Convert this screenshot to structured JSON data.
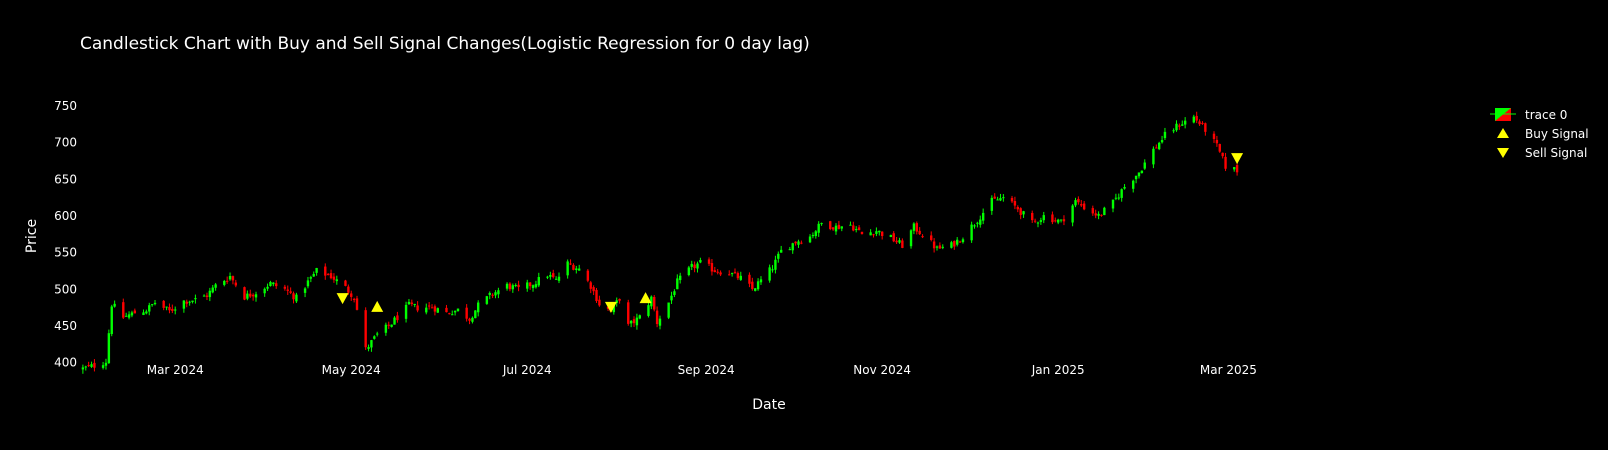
{
  "chart_data": {
    "type": "candlestick",
    "title": "Candlestick Chart with Buy and Sell Signal Changes(Logistic Regression for 0 day lag)",
    "xlabel": "Date",
    "ylabel": "Price",
    "ylim": [
      390,
      765
    ],
    "xlim": [
      "2024-01-28",
      "2025-03-31"
    ],
    "yticks": [
      400,
      450,
      500,
      550,
      600,
      650,
      700,
      750
    ],
    "xticks": [
      {
        "date": "2024-03-01",
        "label": "Mar 2024"
      },
      {
        "date": "2024-05-01",
        "label": "May 2024"
      },
      {
        "date": "2024-07-01",
        "label": "Jul 2024"
      },
      {
        "date": "2024-09-01",
        "label": "Sep 2024"
      },
      {
        "date": "2024-11-01",
        "label": "Nov 2024"
      },
      {
        "date": "2025-01-01",
        "label": "Jan 2025"
      },
      {
        "date": "2025-03-01",
        "label": "Mar 2025"
      }
    ],
    "increasing_color": "#00ff00",
    "decreasing_color": "#ff0000",
    "signal_color": "#ffff00",
    "legend_position": "top-right",
    "legend": [
      {
        "name": "trace 0",
        "symbol": "candle"
      },
      {
        "name": "Buy Signal",
        "symbol": "triangle-up"
      },
      {
        "name": "Sell Signal",
        "symbol": "triangle-down"
      }
    ],
    "close_path": [
      [
        "2024-01-29",
        392
      ],
      [
        "2024-02-02",
        396
      ],
      [
        "2024-02-06",
        402
      ],
      [
        "2024-02-08",
        480
      ],
      [
        "2024-02-12",
        462
      ],
      [
        "2024-02-16",
        468
      ],
      [
        "2024-02-20",
        472
      ],
      [
        "2024-02-23",
        482
      ],
      [
        "2024-02-28",
        470
      ],
      [
        "2024-03-04",
        484
      ],
      [
        "2024-03-08",
        486
      ],
      [
        "2024-03-12",
        492
      ],
      [
        "2024-03-15",
        505
      ],
      [
        "2024-03-20",
        518
      ],
      [
        "2024-03-25",
        490
      ],
      [
        "2024-03-29",
        496
      ],
      [
        "2024-04-03",
        508
      ],
      [
        "2024-04-08",
        500
      ],
      [
        "2024-04-12",
        488
      ],
      [
        "2024-04-16",
        510
      ],
      [
        "2024-04-19",
        525
      ],
      [
        "2024-04-24",
        518
      ],
      [
        "2024-04-29",
        502
      ],
      [
        "2024-05-02",
        490
      ],
      [
        "2024-05-06",
        418
      ],
      [
        "2024-05-10",
        438
      ],
      [
        "2024-05-14",
        450
      ],
      [
        "2024-05-17",
        462
      ],
      [
        "2024-05-21",
        478
      ],
      [
        "2024-05-24",
        475
      ],
      [
        "2024-05-29",
        476
      ],
      [
        "2024-06-03",
        468
      ],
      [
        "2024-06-07",
        472
      ],
      [
        "2024-06-11",
        460
      ],
      [
        "2024-06-14",
        478
      ],
      [
        "2024-06-19",
        494
      ],
      [
        "2024-06-24",
        505
      ],
      [
        "2024-06-28",
        500
      ],
      [
        "2024-07-03",
        508
      ],
      [
        "2024-07-08",
        520
      ],
      [
        "2024-07-11",
        512
      ],
      [
        "2024-07-15",
        535
      ],
      [
        "2024-07-19",
        528
      ],
      [
        "2024-07-23",
        505
      ],
      [
        "2024-07-26",
        480
      ],
      [
        "2024-07-30",
        470
      ],
      [
        "2024-08-02",
        488
      ],
      [
        "2024-08-05",
        450
      ],
      [
        "2024-08-09",
        462
      ],
      [
        "2024-08-13",
        488
      ],
      [
        "2024-08-15",
        455
      ],
      [
        "2024-08-19",
        482
      ],
      [
        "2024-08-22",
        510
      ],
      [
        "2024-08-27",
        530
      ],
      [
        "2024-08-30",
        536
      ],
      [
        "2024-09-04",
        526
      ],
      [
        "2024-09-09",
        522
      ],
      [
        "2024-09-13",
        515
      ],
      [
        "2024-09-17",
        500
      ],
      [
        "2024-09-20",
        512
      ],
      [
        "2024-09-24",
        530
      ],
      [
        "2024-09-27",
        552
      ],
      [
        "2024-10-02",
        565
      ],
      [
        "2024-10-07",
        572
      ],
      [
        "2024-10-11",
        590
      ],
      [
        "2024-10-16",
        585
      ],
      [
        "2024-10-21",
        588
      ],
      [
        "2024-10-25",
        575
      ],
      [
        "2024-10-30",
        580
      ],
      [
        "2024-11-04",
        570
      ],
      [
        "2024-11-08",
        560
      ],
      [
        "2024-11-12",
        585
      ],
      [
        "2024-11-15",
        575
      ],
      [
        "2024-11-20",
        555
      ],
      [
        "2024-11-25",
        560
      ],
      [
        "2024-11-29",
        572
      ],
      [
        "2024-12-04",
        595
      ],
      [
        "2024-12-09",
        620
      ],
      [
        "2024-12-13",
        625
      ],
      [
        "2024-12-18",
        610
      ],
      [
        "2024-12-23",
        590
      ],
      [
        "2024-12-27",
        600
      ],
      [
        "2025-01-02",
        592
      ],
      [
        "2025-01-07",
        620
      ],
      [
        "2025-01-10",
        612
      ],
      [
        "2025-01-15",
        600
      ],
      [
        "2025-01-20",
        618
      ],
      [
        "2025-01-24",
        640
      ],
      [
        "2025-01-29",
        660
      ],
      [
        "2025-02-03",
        690
      ],
      [
        "2025-02-07",
        710
      ],
      [
        "2025-02-12",
        725
      ],
      [
        "2025-02-17",
        735
      ],
      [
        "2025-02-21",
        718
      ],
      [
        "2025-02-25",
        695
      ],
      [
        "2025-02-28",
        668
      ],
      [
        "2025-03-04",
        662
      ]
    ],
    "buy_signals": [
      {
        "date": "2024-05-10",
        "price": 476
      },
      {
        "date": "2024-08-11",
        "price": 488
      }
    ],
    "sell_signals": [
      {
        "date": "2024-04-28",
        "price": 488
      },
      {
        "date": "2024-07-30",
        "price": 476
      },
      {
        "date": "2025-03-04",
        "price": 679
      }
    ]
  }
}
